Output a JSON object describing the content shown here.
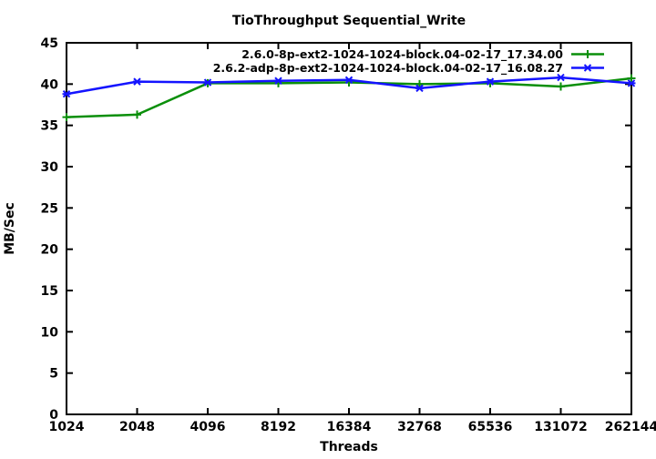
{
  "title": "TioThroughput Sequential_Write",
  "colors": {
    "background": "#ffffff",
    "axis": "#000000",
    "series1": "#0a8f0a",
    "series2": "#1414ff"
  },
  "chart_data": {
    "type": "line",
    "title": "TioThroughput Sequential_Write",
    "xlabel": "Threads",
    "ylabel": "MB/Sec",
    "x_scale": "log2-categorical",
    "categories": [
      "1024",
      "2048",
      "4096",
      "8192",
      "16384",
      "32768",
      "65536",
      "131072",
      "262144"
    ],
    "ylim": [
      0,
      45
    ],
    "y_ticks": [
      0,
      5,
      10,
      15,
      20,
      25,
      30,
      35,
      40,
      45
    ],
    "grid": false,
    "legend_position": "top-right-inside",
    "border": "box-with-mirrored-ticks",
    "series": [
      {
        "name": "2.6.0-8p-ext2-1024-1024-block.04-02-17_17.34.00",
        "color": "#0a8f0a",
        "marker": "plus",
        "values": [
          36.0,
          36.3,
          40.1,
          40.1,
          40.2,
          40.0,
          40.1,
          39.7,
          40.7
        ]
      },
      {
        "name": "2.6.2-adp-8p-ext2-1024-1024-block.04-02-17_16.08.27",
        "color": "#1414ff",
        "marker": "asterisk",
        "values": [
          38.8,
          40.3,
          40.2,
          40.4,
          40.5,
          39.5,
          40.3,
          40.8,
          40.1
        ]
      }
    ]
  }
}
